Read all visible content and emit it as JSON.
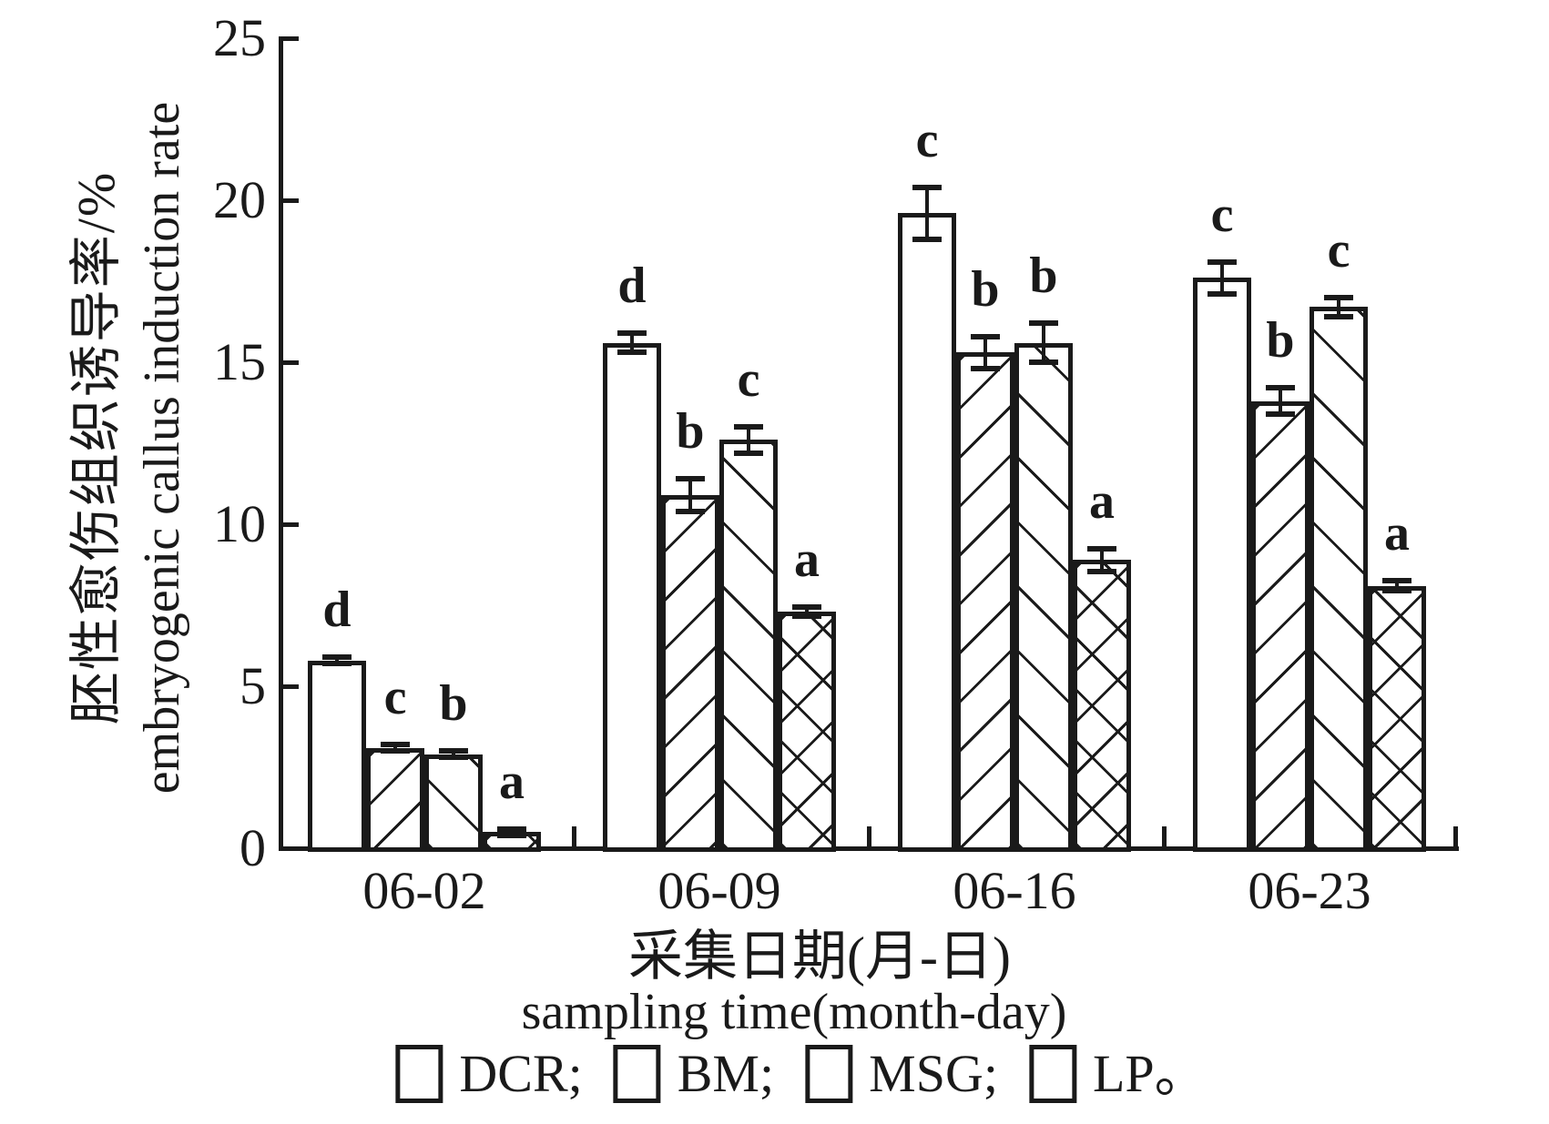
{
  "page": {
    "background": "#ffffff",
    "ink": "#1a1a1a"
  },
  "chart_data": {
    "type": "bar",
    "title": "",
    "ylabel_zh": "胚性愈伤组织诱导率/%",
    "ylabel_en": "embryogenic callus induction rate",
    "xlabel_zh": "采集日期(月-日)",
    "xlabel_en": "sampling time(month-day)",
    "ylim": [
      0,
      25
    ],
    "yticks": [
      0,
      5,
      10,
      15,
      20,
      25
    ],
    "grid": false,
    "error_bars": true,
    "legend_position": "bottom",
    "categories": [
      "06-02",
      "06-09",
      "06-16",
      "06-23"
    ],
    "series": [
      {
        "name": "DCR",
        "hatch": "none",
        "values": [
          5.8,
          15.6,
          19.6,
          17.6
        ],
        "errors": [
          0.1,
          0.3,
          0.8,
          0.5
        ],
        "sig_letters": [
          "d",
          "d",
          "c",
          "c"
        ]
      },
      {
        "name": "BM",
        "hatch": "forward-diagonal",
        "values": [
          3.1,
          10.9,
          15.3,
          13.8
        ],
        "errors": [
          0.1,
          0.5,
          0.5,
          0.4
        ],
        "sig_letters": [
          "c",
          "b",
          "b",
          "b"
        ]
      },
      {
        "name": "MSG",
        "hatch": "back-diagonal",
        "values": [
          2.9,
          12.6,
          15.6,
          16.7
        ],
        "errors": [
          0.1,
          0.4,
          0.6,
          0.3
        ],
        "sig_letters": [
          "b",
          "c",
          "b",
          "c"
        ]
      },
      {
        "name": "LP",
        "hatch": "crosshatch",
        "values": [
          0.5,
          7.3,
          8.9,
          8.1
        ],
        "errors": [
          0.1,
          0.15,
          0.35,
          0.15
        ],
        "sig_letters": [
          "a",
          "a",
          "a",
          "a"
        ]
      }
    ],
    "legend_entries": [
      {
        "name": "DCR",
        "label": "DCR;",
        "hatch": "none"
      },
      {
        "name": "BM",
        "label": "BM;",
        "hatch": "forward-diagonal"
      },
      {
        "name": "MSG",
        "label": "MSG;",
        "hatch": "back-diagonal"
      },
      {
        "name": "LP",
        "label": "LP。",
        "hatch": "crosshatch"
      }
    ]
  }
}
